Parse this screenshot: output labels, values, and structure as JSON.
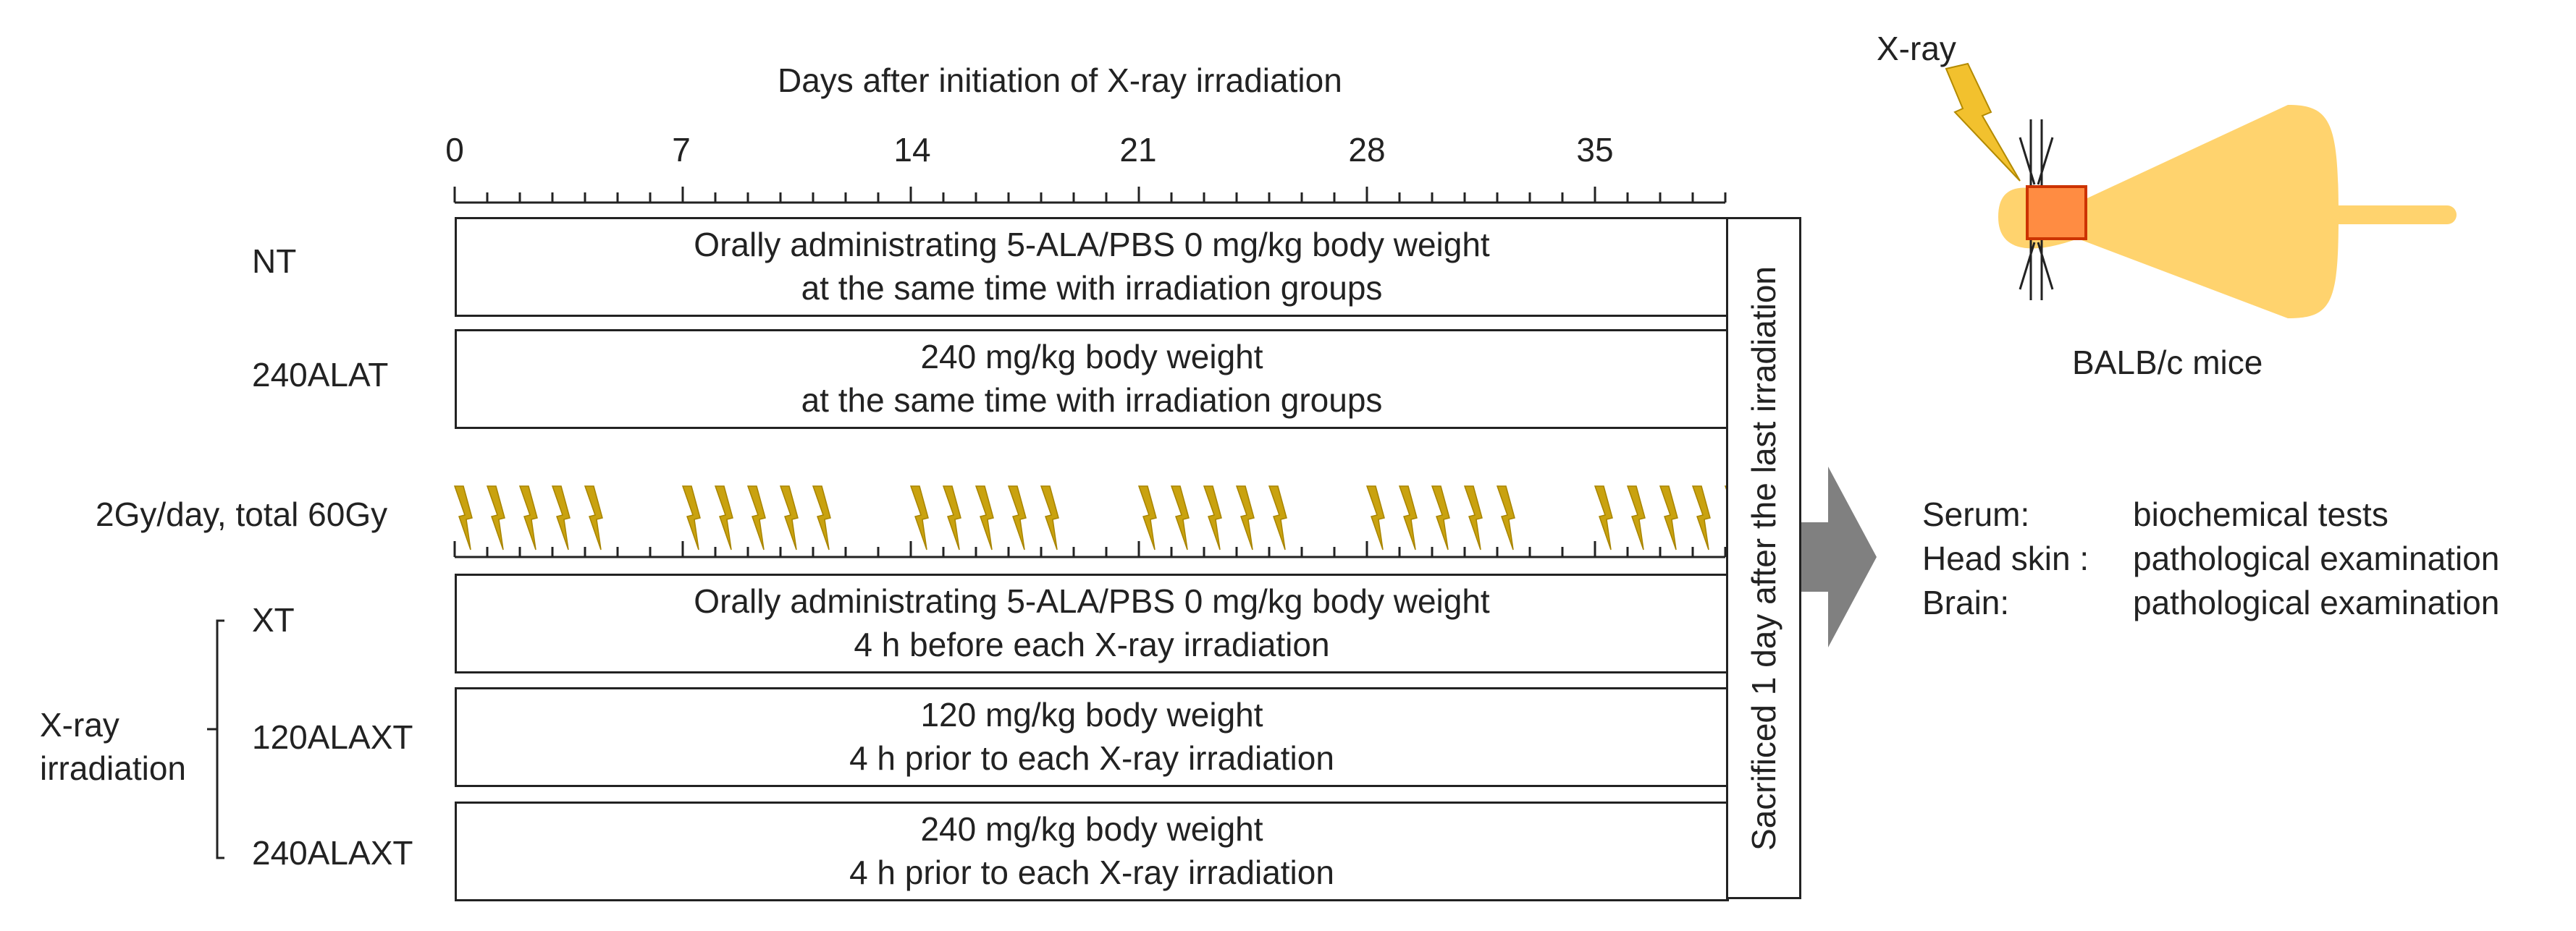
{
  "axis": {
    "title": "Days after initiation of X-ray irradiation",
    "tick_labels": [
      "0",
      "7",
      "14",
      "21",
      "28",
      "35"
    ],
    "days_labeled": [
      0,
      7,
      14,
      21,
      28,
      35
    ],
    "total_days": 39
  },
  "groups": [
    {
      "id": "NT",
      "label": "NT",
      "line1": "Orally administrating  5-ALA/PBS 0 mg/kg  body weight",
      "line2": "at the same time with irradiation groups"
    },
    {
      "id": "240ALAT",
      "label": "240ALAT",
      "line1": "240 mg/kg body weight",
      "line2": "at the same time with irradiation groups"
    },
    {
      "id": "XT",
      "label": "XT",
      "line1": "Orally administrating  5-ALA/PBS 0 mg/kg  body weight",
      "line2": "4 h before each X-ray irradiation"
    },
    {
      "id": "120ALAXT",
      "label": "120ALAXT",
      "line1": "120 mg/kg body weight",
      "line2": "4 h prior to each X-ray irradiation"
    },
    {
      "id": "240ALAXT",
      "label": "240ALAXT",
      "line1": "240 mg/kg body weight",
      "line2": "4 h prior to each X-ray irradiation"
    }
  ],
  "irradiation": {
    "label": "2Gy/day, total 60Gy",
    "bolt_color": "#c9a20f",
    "weeks": 6,
    "bolts_per_week": 5
  },
  "xray_bracket": {
    "line1": "X-ray",
    "line2": "irradiation"
  },
  "sacrifice_text": "Sacrificed  1  day after the last irradiation",
  "mouse": {
    "xray_label": "X-ray",
    "caption": "BALB/c mice",
    "body_color": "#ffd36e",
    "target_color": "#ff8c42",
    "target_border": "#cc3300",
    "bolt_color": "#f2c12e"
  },
  "arrow_color": "#808080",
  "outcomes": [
    {
      "sample": "Serum:",
      "test": "biochemical tests"
    },
    {
      "sample": "Head skin :",
      "test": "pathological examination"
    },
    {
      "sample": "Brain:",
      "test": "pathological examination"
    }
  ]
}
